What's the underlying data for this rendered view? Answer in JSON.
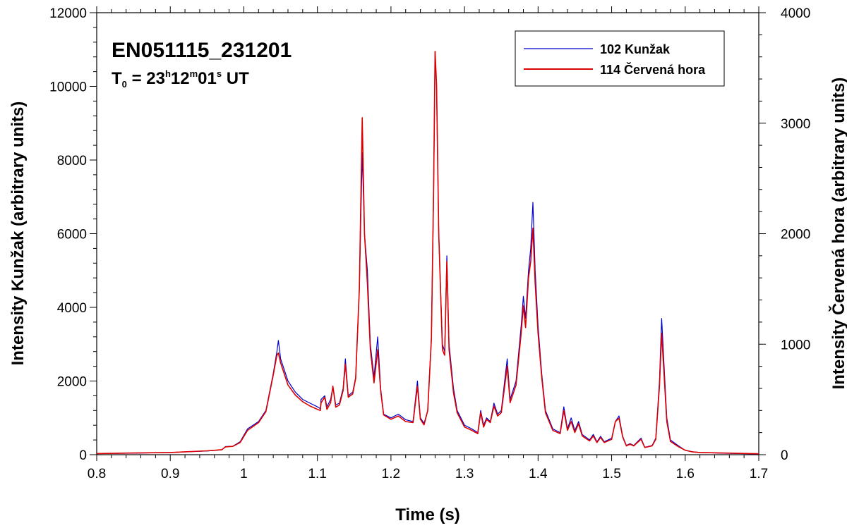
{
  "chart_data": {
    "type": "line",
    "title": "EN051115_231201",
    "subtitle": {
      "prefix": "T",
      "prefix_sub": "0",
      "main": " = 23",
      "h": "h",
      "min": "12",
      "m": "m",
      "sec": "01",
      "s": "s",
      "suffix": " UT"
    },
    "xlabel": "Time (s)",
    "ylabel_left": "Intensity Kunžak (arbitrary units)",
    "ylabel_right": "Intensity Červená hora (arbitrary units)",
    "xlim": [
      0.8,
      1.7
    ],
    "ylim_left": [
      0,
      12000
    ],
    "ylim_right": [
      0,
      4000
    ],
    "x_ticks": [
      "0.8",
      "0.9",
      "1",
      "1.1",
      "1.2",
      "1.3",
      "1.4",
      "1.5",
      "1.6",
      "1.7"
    ],
    "y_ticks_left": [
      "0",
      "2000",
      "4000",
      "6000",
      "8000",
      "10000",
      "12000"
    ],
    "y_ticks_right": [
      "0",
      "1000",
      "2000",
      "3000",
      "4000"
    ],
    "legend_position": "top-right",
    "grid": false,
    "series": [
      {
        "name": "102 Kunžak",
        "axis": "left",
        "color": "#0000cc",
        "points": [
          [
            0.8,
            30
          ],
          [
            0.85,
            40
          ],
          [
            0.9,
            60
          ],
          [
            0.95,
            100
          ],
          [
            0.97,
            130
          ],
          [
            0.975,
            220
          ],
          [
            0.985,
            230
          ],
          [
            0.995,
            350
          ],
          [
            1.005,
            700
          ],
          [
            1.02,
            900
          ],
          [
            1.03,
            1200
          ],
          [
            1.04,
            2200
          ],
          [
            1.045,
            2800
          ],
          [
            1.047,
            3100
          ],
          [
            1.05,
            2600
          ],
          [
            1.06,
            2000
          ],
          [
            1.07,
            1700
          ],
          [
            1.08,
            1500
          ],
          [
            1.09,
            1400
          ],
          [
            1.1,
            1300
          ],
          [
            1.104,
            1250
          ],
          [
            1.105,
            1500
          ],
          [
            1.11,
            1600
          ],
          [
            1.113,
            1300
          ],
          [
            1.118,
            1500
          ],
          [
            1.121,
            1850
          ],
          [
            1.125,
            1350
          ],
          [
            1.13,
            1400
          ],
          [
            1.135,
            1800
          ],
          [
            1.138,
            2600
          ],
          [
            1.142,
            1600
          ],
          [
            1.148,
            1700
          ],
          [
            1.152,
            2100
          ],
          [
            1.157,
            4500
          ],
          [
            1.161,
            8200
          ],
          [
            1.164,
            6000
          ],
          [
            1.168,
            5000
          ],
          [
            1.172,
            3000
          ],
          [
            1.177,
            2100
          ],
          [
            1.182,
            3200
          ],
          [
            1.186,
            1800
          ],
          [
            1.19,
            1100
          ],
          [
            1.2,
            1000
          ],
          [
            1.21,
            1100
          ],
          [
            1.22,
            950
          ],
          [
            1.23,
            900
          ],
          [
            1.236,
            2000
          ],
          [
            1.24,
            1000
          ],
          [
            1.245,
            850
          ],
          [
            1.25,
            1200
          ],
          [
            1.255,
            3200
          ],
          [
            1.258,
            7000
          ],
          [
            1.26,
            10900
          ],
          [
            1.262,
            10000
          ],
          [
            1.265,
            6000
          ],
          [
            1.27,
            3000
          ],
          [
            1.273,
            2800
          ],
          [
            1.276,
            5400
          ],
          [
            1.279,
            3000
          ],
          [
            1.285,
            1800
          ],
          [
            1.29,
            1200
          ],
          [
            1.3,
            800
          ],
          [
            1.31,
            700
          ],
          [
            1.318,
            600
          ],
          [
            1.322,
            1200
          ],
          [
            1.326,
            800
          ],
          [
            1.33,
            1000
          ],
          [
            1.335,
            900
          ],
          [
            1.34,
            1400
          ],
          [
            1.345,
            1100
          ],
          [
            1.35,
            1200
          ],
          [
            1.358,
            2600
          ],
          [
            1.362,
            1500
          ],
          [
            1.37,
            2000
          ],
          [
            1.377,
            3500
          ],
          [
            1.38,
            4300
          ],
          [
            1.383,
            3700
          ],
          [
            1.387,
            5000
          ],
          [
            1.39,
            5600
          ],
          [
            1.393,
            6850
          ],
          [
            1.396,
            5000
          ],
          [
            1.4,
            3500
          ],
          [
            1.405,
            2200
          ],
          [
            1.41,
            1200
          ],
          [
            1.42,
            700
          ],
          [
            1.43,
            600
          ],
          [
            1.435,
            1300
          ],
          [
            1.44,
            700
          ],
          [
            1.445,
            1000
          ],
          [
            1.45,
            650
          ],
          [
            1.455,
            900
          ],
          [
            1.46,
            550
          ],
          [
            1.47,
            400
          ],
          [
            1.475,
            550
          ],
          [
            1.48,
            350
          ],
          [
            1.485,
            500
          ],
          [
            1.49,
            350
          ],
          [
            1.5,
            450
          ],
          [
            1.505,
            900
          ],
          [
            1.51,
            1050
          ],
          [
            1.515,
            500
          ],
          [
            1.52,
            250
          ],
          [
            1.525,
            300
          ],
          [
            1.53,
            250
          ],
          [
            1.54,
            450
          ],
          [
            1.545,
            200
          ],
          [
            1.555,
            250
          ],
          [
            1.56,
            450
          ],
          [
            1.565,
            2000
          ],
          [
            1.568,
            3700
          ],
          [
            1.571,
            2500
          ],
          [
            1.575,
            1000
          ],
          [
            1.58,
            400
          ],
          [
            1.59,
            250
          ],
          [
            1.6,
            120
          ],
          [
            1.61,
            80
          ],
          [
            1.62,
            60
          ],
          [
            1.65,
            40
          ],
          [
            1.7,
            20
          ]
        ]
      },
      {
        "name": "114 Červená hora",
        "axis": "right",
        "color": "#dd0000",
        "points": [
          [
            0.8,
            10
          ],
          [
            0.85,
            15
          ],
          [
            0.9,
            20
          ],
          [
            0.95,
            35
          ],
          [
            0.97,
            45
          ],
          [
            0.975,
            70
          ],
          [
            0.985,
            75
          ],
          [
            0.995,
            110
          ],
          [
            1.005,
            220
          ],
          [
            1.02,
            290
          ],
          [
            1.03,
            390
          ],
          [
            1.04,
            720
          ],
          [
            1.045,
            900
          ],
          [
            1.047,
            920
          ],
          [
            1.05,
            830
          ],
          [
            1.06,
            630
          ],
          [
            1.07,
            540
          ],
          [
            1.08,
            480
          ],
          [
            1.09,
            440
          ],
          [
            1.1,
            410
          ],
          [
            1.104,
            400
          ],
          [
            1.105,
            470
          ],
          [
            1.11,
            520
          ],
          [
            1.113,
            410
          ],
          [
            1.118,
            470
          ],
          [
            1.121,
            620
          ],
          [
            1.125,
            430
          ],
          [
            1.13,
            450
          ],
          [
            1.135,
            580
          ],
          [
            1.138,
            820
          ],
          [
            1.142,
            520
          ],
          [
            1.148,
            550
          ],
          [
            1.152,
            690
          ],
          [
            1.157,
            1500
          ],
          [
            1.161,
            3050
          ],
          [
            1.164,
            2000
          ],
          [
            1.168,
            1550
          ],
          [
            1.172,
            950
          ],
          [
            1.177,
            650
          ],
          [
            1.182,
            950
          ],
          [
            1.186,
            580
          ],
          [
            1.19,
            360
          ],
          [
            1.2,
            320
          ],
          [
            1.21,
            350
          ],
          [
            1.22,
            300
          ],
          [
            1.23,
            290
          ],
          [
            1.236,
            620
          ],
          [
            1.24,
            320
          ],
          [
            1.245,
            270
          ],
          [
            1.25,
            400
          ],
          [
            1.255,
            1050
          ],
          [
            1.258,
            2400
          ],
          [
            1.26,
            3650
          ],
          [
            1.262,
            3350
          ],
          [
            1.265,
            2000
          ],
          [
            1.27,
            950
          ],
          [
            1.273,
            900
          ],
          [
            1.276,
            1750
          ],
          [
            1.279,
            950
          ],
          [
            1.285,
            560
          ],
          [
            1.29,
            380
          ],
          [
            1.3,
            250
          ],
          [
            1.31,
            220
          ],
          [
            1.318,
            190
          ],
          [
            1.322,
            380
          ],
          [
            1.326,
            250
          ],
          [
            1.33,
            320
          ],
          [
            1.335,
            290
          ],
          [
            1.34,
            440
          ],
          [
            1.345,
            350
          ],
          [
            1.35,
            380
          ],
          [
            1.358,
            800
          ],
          [
            1.362,
            470
          ],
          [
            1.37,
            630
          ],
          [
            1.377,
            1100
          ],
          [
            1.38,
            1350
          ],
          [
            1.383,
            1150
          ],
          [
            1.387,
            1600
          ],
          [
            1.39,
            1750
          ],
          [
            1.393,
            2050
          ],
          [
            1.396,
            1550
          ],
          [
            1.4,
            1100
          ],
          [
            1.405,
            700
          ],
          [
            1.41,
            380
          ],
          [
            1.42,
            220
          ],
          [
            1.43,
            190
          ],
          [
            1.435,
            400
          ],
          [
            1.44,
            220
          ],
          [
            1.445,
            300
          ],
          [
            1.45,
            200
          ],
          [
            1.455,
            280
          ],
          [
            1.46,
            170
          ],
          [
            1.47,
            125
          ],
          [
            1.475,
            170
          ],
          [
            1.48,
            110
          ],
          [
            1.485,
            155
          ],
          [
            1.49,
            110
          ],
          [
            1.5,
            140
          ],
          [
            1.505,
            300
          ],
          [
            1.51,
            330
          ],
          [
            1.515,
            160
          ],
          [
            1.52,
            80
          ],
          [
            1.525,
            95
          ],
          [
            1.53,
            80
          ],
          [
            1.54,
            140
          ],
          [
            1.545,
            65
          ],
          [
            1.555,
            80
          ],
          [
            1.56,
            140
          ],
          [
            1.565,
            620
          ],
          [
            1.568,
            1100
          ],
          [
            1.571,
            750
          ],
          [
            1.575,
            300
          ],
          [
            1.58,
            120
          ],
          [
            1.59,
            75
          ],
          [
            1.6,
            40
          ],
          [
            1.61,
            25
          ],
          [
            1.62,
            20
          ],
          [
            1.65,
            15
          ],
          [
            1.7,
            8
          ]
        ]
      }
    ]
  }
}
